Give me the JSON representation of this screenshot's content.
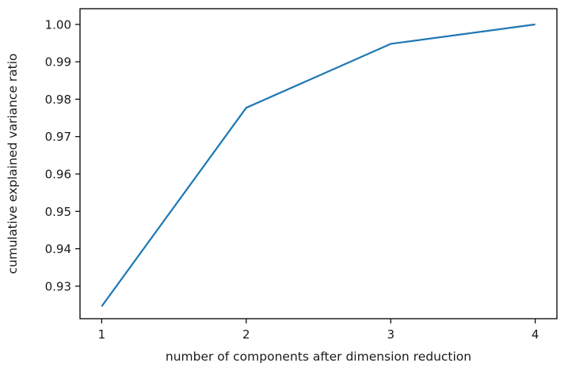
{
  "figure": {
    "background": "#ffffff"
  },
  "chart_data": {
    "type": "line",
    "title": "",
    "xlabel": "number of components after dimension reduction",
    "ylabel": "cumulative explained variance ratio",
    "x": [
      1,
      2,
      3,
      4
    ],
    "y": [
      0.9246,
      0.9777,
      0.9948,
      1.0
    ],
    "series": [
      {
        "name": "cumulative explained variance ratio",
        "x": [
          1,
          2,
          3,
          4
        ],
        "y": [
          0.9246,
          0.9777,
          0.9948,
          1.0
        ]
      }
    ],
    "xticks": [
      1,
      2,
      3,
      4
    ],
    "xtick_labels": [
      "1",
      "2",
      "3",
      "4"
    ],
    "yticks": [
      0.93,
      0.94,
      0.95,
      0.96,
      0.97,
      0.98,
      0.99,
      1.0
    ],
    "ytick_labels": [
      "0.93",
      "0.94",
      "0.95",
      "0.96",
      "0.97",
      "0.98",
      "0.99",
      "1.00"
    ],
    "xlim": [
      0.85,
      4.15
    ],
    "ylim": [
      0.9213,
      1.0042
    ],
    "grid": false,
    "legend": null,
    "line_color": "#1f77b4",
    "axis_color": "#000000",
    "text_color": "#1a1a1a"
  }
}
